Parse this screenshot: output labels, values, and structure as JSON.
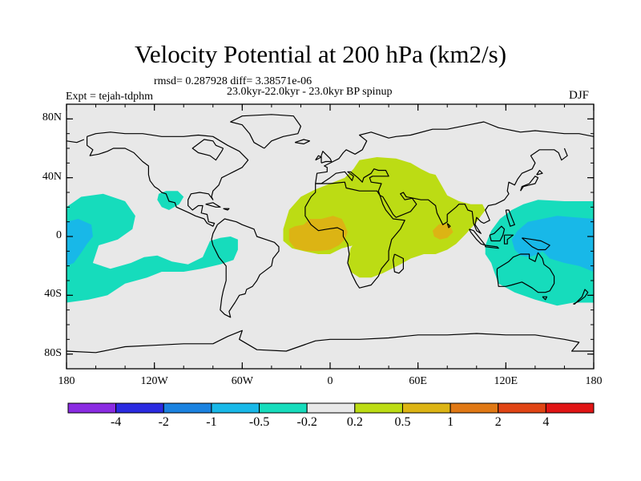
{
  "chart_data": {
    "type": "heatmap",
    "title": "Velocity Potential at 200 hPa (km2/s)",
    "left_string": "Expt = tejah-tdphm",
    "center_string_1": "rmsd= 0.287928 diff= 3.38571e-06",
    "center_string_2": "23.0kyr-22.0kyr - 23.0kyr BP spinup",
    "right_string": "DJF",
    "projection": "cylindrical equidistant",
    "lon_range": [
      -180,
      180
    ],
    "lat_range": [
      -90,
      90
    ],
    "lat_ticks": [
      {
        "value": 80,
        "label": "80N"
      },
      {
        "value": 40,
        "label": "40N"
      },
      {
        "value": 0,
        "label": "0"
      },
      {
        "value": -40,
        "label": "40S"
      },
      {
        "value": -80,
        "label": "80S"
      }
    ],
    "lon_ticks": [
      {
        "value": -180,
        "label": "180"
      },
      {
        "value": -120,
        "label": "120W"
      },
      {
        "value": -60,
        "label": "60W"
      },
      {
        "value": 0,
        "label": "0"
      },
      {
        "value": 60,
        "label": "60E"
      },
      {
        "value": 120,
        "label": "120E"
      },
      {
        "value": 180,
        "label": "180"
      }
    ],
    "colorbar": {
      "levels": [
        -4,
        -2,
        -1,
        -0.5,
        -0.2,
        0.2,
        0.5,
        1,
        2,
        4
      ],
      "labels": [
        "-4",
        "-2",
        "-1",
        "-0.5",
        "-0.2",
        "0.2",
        "0.5",
        "1",
        "2",
        "4"
      ],
      "colors": [
        "#8a2be2",
        "#2a2ae0",
        "#1a82e0",
        "#18b8e8",
        "#16dcbc",
        "#e8e8e8",
        "#bcdc14",
        "#dcb414",
        "#e07814",
        "#e04414",
        "#e01414"
      ]
    },
    "regions": [
      {
        "name": "east-pacific-negative",
        "band": "-0.5 to -0.2",
        "color": "#16dcbc",
        "polygon": [
          [
            -180,
            20
          ],
          [
            -170,
            27
          ],
          [
            -155,
            29
          ],
          [
            -140,
            24
          ],
          [
            -133,
            14
          ],
          [
            -135,
            5
          ],
          [
            -145,
            -2
          ],
          [
            -158,
            -6
          ],
          [
            -162,
            -18
          ],
          [
            -150,
            -22
          ],
          [
            -136,
            -18
          ],
          [
            -127,
            -14
          ],
          [
            -118,
            -13
          ],
          [
            -108,
            -17
          ],
          [
            -97,
            -19
          ],
          [
            -87,
            -14
          ],
          [
            -82,
            -3
          ],
          [
            -75,
            -1
          ],
          [
            -68,
            0
          ],
          [
            -63,
            -2
          ],
          [
            -63,
            -9
          ],
          [
            -66,
            -16
          ],
          [
            -75,
            -19
          ],
          [
            -88,
            -22
          ],
          [
            -100,
            -24
          ],
          [
            -115,
            -24
          ],
          [
            -125,
            -28
          ],
          [
            -140,
            -32
          ],
          [
            -152,
            -40
          ],
          [
            -165,
            -43
          ],
          [
            -180,
            -45
          ]
        ]
      },
      {
        "name": "gulf-negative",
        "band": "-0.5 to -0.2",
        "color": "#16dcbc",
        "polygon": [
          [
            -117,
            29
          ],
          [
            -112,
            31
          ],
          [
            -104,
            31
          ],
          [
            -100,
            27
          ],
          [
            -103,
            22
          ],
          [
            -110,
            18
          ],
          [
            -115,
            20
          ],
          [
            -118,
            25
          ]
        ]
      },
      {
        "name": "pacific-dateline-negative",
        "band": "-1 to -0.5",
        "color": "#18b8e8",
        "polygon": [
          [
            -180,
            10
          ],
          [
            -172,
            12
          ],
          [
            -163,
            8
          ],
          [
            -162,
            0
          ],
          [
            -166,
            -5
          ],
          [
            -170,
            -11
          ],
          [
            -175,
            -18
          ],
          [
            -180,
            -20
          ]
        ]
      },
      {
        "name": "africa-positive",
        "band": "0.2 to 0.5",
        "color": "#bcdc14",
        "polygon": [
          [
            -32,
            5
          ],
          [
            -28,
            18
          ],
          [
            -20,
            27
          ],
          [
            -10,
            32
          ],
          [
            0,
            36
          ],
          [
            10,
            40
          ],
          [
            16,
            46
          ],
          [
            20,
            52
          ],
          [
            32,
            54
          ],
          [
            45,
            53
          ],
          [
            55,
            50
          ],
          [
            62,
            46
          ],
          [
            68,
            43
          ],
          [
            72,
            42
          ],
          [
            80,
            28
          ],
          [
            88,
            24
          ],
          [
            96,
            22
          ],
          [
            104,
            22
          ],
          [
            106,
            18
          ],
          [
            100,
            10
          ],
          [
            93,
            2
          ],
          [
            86,
            -5
          ],
          [
            80,
            -9
          ],
          [
            72,
            -12
          ],
          [
            64,
            -12
          ],
          [
            55,
            -15
          ],
          [
            48,
            -19
          ],
          [
            42,
            -22
          ],
          [
            36,
            -25
          ],
          [
            28,
            -28
          ],
          [
            20,
            -28
          ],
          [
            14,
            -24
          ],
          [
            12,
            -16
          ],
          [
            14,
            -8
          ],
          [
            18,
            -2
          ],
          [
            20,
            2
          ],
          [
            24,
            5
          ],
          [
            30,
            6
          ],
          [
            36,
            2
          ],
          [
            38,
            -4
          ],
          [
            34,
            -9
          ],
          [
            28,
            -8
          ],
          [
            22,
            -6
          ],
          [
            16,
            -6
          ],
          [
            8,
            -8
          ],
          [
            0,
            -12
          ],
          [
            -8,
            -12
          ],
          [
            -18,
            -10
          ],
          [
            -26,
            -8
          ],
          [
            -32,
            -3
          ]
        ]
      },
      {
        "name": "atlantic-positive-max",
        "band": "0.5 to 1",
        "color": "#dcb414",
        "polygon": [
          [
            -28,
            5
          ],
          [
            -24,
            7
          ],
          [
            -18,
            8
          ],
          [
            -14,
            12
          ],
          [
            -6,
            12
          ],
          [
            2,
            14
          ],
          [
            8,
            12
          ],
          [
            10,
            8
          ],
          [
            12,
            3
          ],
          [
            10,
            -2
          ],
          [
            6,
            -6
          ],
          [
            0,
            -9
          ],
          [
            -8,
            -10
          ],
          [
            -16,
            -10
          ],
          [
            -24,
            -8
          ],
          [
            -28,
            -3
          ]
        ]
      },
      {
        "name": "india-positive-max",
        "band": "0.5 to 1",
        "color": "#dcb414",
        "polygon": [
          [
            70,
            4
          ],
          [
            74,
            8
          ],
          [
            78,
            9
          ],
          [
            82,
            7
          ],
          [
            84,
            3
          ],
          [
            80,
            -1
          ],
          [
            75,
            -2
          ],
          [
            71,
            0
          ]
        ]
      },
      {
        "name": "west-pacific-negative",
        "band": "-0.5 to -0.2",
        "color": "#16dcbc",
        "polygon": [
          [
            106,
            -6
          ],
          [
            110,
            4
          ],
          [
            116,
            12
          ],
          [
            124,
            18
          ],
          [
            132,
            22
          ],
          [
            142,
            25
          ],
          [
            160,
            24
          ],
          [
            180,
            24
          ],
          [
            180,
            -45
          ],
          [
            166,
            -45
          ],
          [
            155,
            -47
          ],
          [
            140,
            -43
          ],
          [
            126,
            -38
          ],
          [
            115,
            -32
          ],
          [
            112,
            -24
          ],
          [
            110,
            -18
          ],
          [
            106,
            -12
          ]
        ]
      },
      {
        "name": "west-pacific-core",
        "band": "-1 to -0.5",
        "color": "#18b8e8",
        "polygon": [
          [
            128,
            4
          ],
          [
            135,
            10
          ],
          [
            145,
            12
          ],
          [
            155,
            14
          ],
          [
            168,
            13
          ],
          [
            180,
            12
          ],
          [
            180,
            -24
          ],
          [
            170,
            -20
          ],
          [
            160,
            -18
          ],
          [
            150,
            -15
          ],
          [
            145,
            -10
          ],
          [
            142,
            -12
          ],
          [
            136,
            -14
          ],
          [
            130,
            -13
          ],
          [
            126,
            -9
          ],
          [
            124,
            -2
          ]
        ]
      }
    ]
  }
}
